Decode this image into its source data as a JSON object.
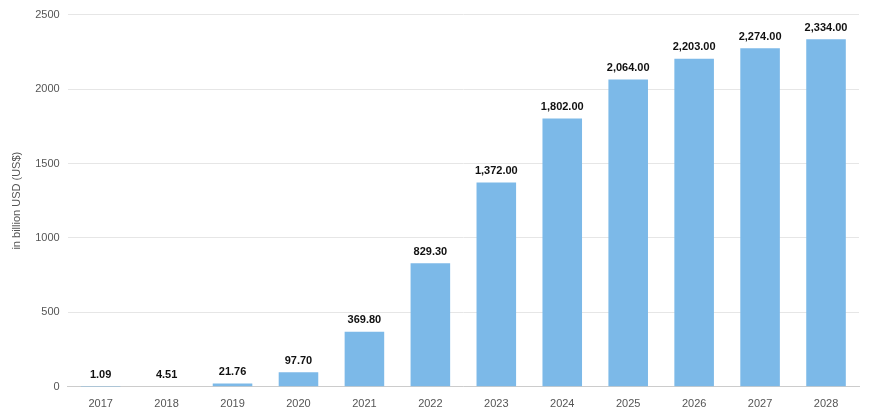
{
  "chart_data": {
    "type": "bar",
    "y_label": "in billion USD (US$)",
    "categories": [
      "2017",
      "2018",
      "2019",
      "2020",
      "2021",
      "2022",
      "2023",
      "2024",
      "2025",
      "2026",
      "2027",
      "2028"
    ],
    "values": [
      1.09,
      4.51,
      21.76,
      97.7,
      369.8,
      829.3,
      1372,
      1802,
      2064,
      2203,
      2274,
      2334
    ],
    "value_labels": [
      "1.09",
      "4.51",
      "21.76",
      "97.70",
      "369.80",
      "829.30",
      "1,372.00",
      "1,802.00",
      "2,064.00",
      "2,203.00",
      "2,274.00",
      "2,334.00"
    ],
    "color": "#7cb9e8",
    "ylim": [
      0,
      2500
    ],
    "yticks": [
      0,
      500,
      1000,
      1500,
      2000,
      2500
    ],
    "grid": true,
    "data_labels": true
  }
}
